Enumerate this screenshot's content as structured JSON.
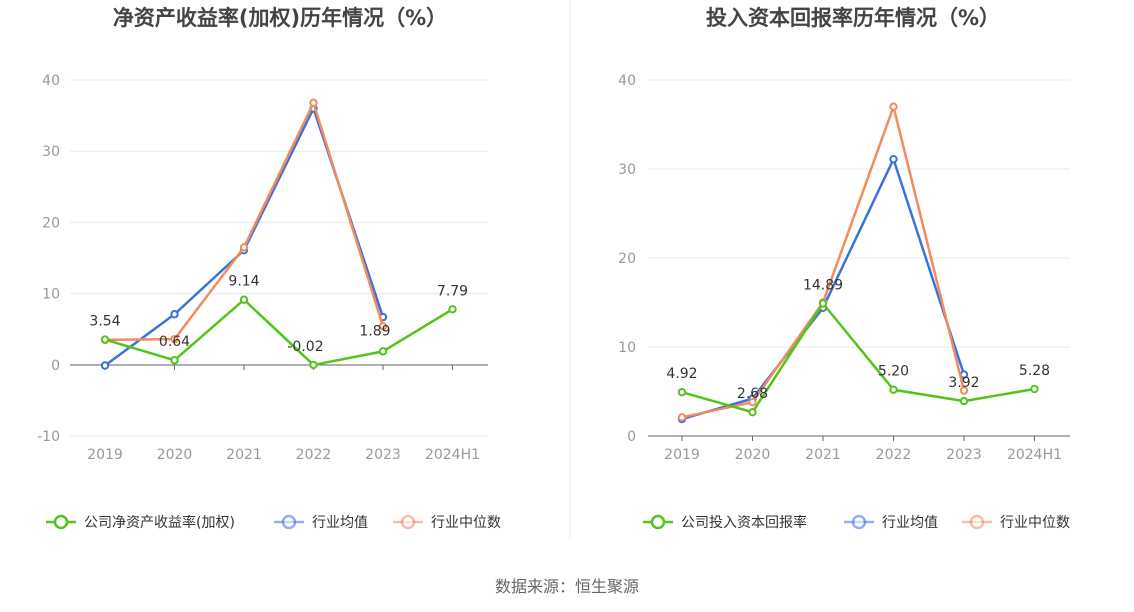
{
  "source_text": "数据来源：恒生聚源",
  "chart_data": [
    {
      "type": "line",
      "title": "净资产收益率(加权)历年情况（%）",
      "categories": [
        "2019",
        "2020",
        "2021",
        "2022",
        "2023",
        "2024H1"
      ],
      "ylim": [
        -10,
        40
      ],
      "yticks": [
        "-10",
        "0",
        "10",
        "20",
        "30",
        "40"
      ],
      "grid": true,
      "legend_position": "bottom",
      "series": [
        {
          "name": "公司净资产收益率(加权)",
          "color": "#52c41a",
          "values": [
            3.54,
            0.64,
            9.14,
            -0.02,
            1.89,
            7.79
          ],
          "labels": [
            "3.54",
            "0.64",
            "9.14",
            "-0.02",
            "1.89",
            "7.79"
          ]
        },
        {
          "name": "行业均值",
          "color": "#3b73dd",
          "values": [
            -0.1,
            7.1,
            16.1,
            36.0,
            6.7,
            null
          ]
        },
        {
          "name": "行业中位数",
          "color": "#f28b5e",
          "values": [
            3.5,
            3.6,
            16.5,
            36.8,
            5.4,
            null
          ]
        }
      ]
    },
    {
      "type": "line",
      "title": "投入资本回报率历年情况（%）",
      "categories": [
        "2019",
        "2020",
        "2021",
        "2022",
        "2023",
        "2024H1"
      ],
      "ylim": [
        0,
        40
      ],
      "yticks": [
        "0",
        "10",
        "20",
        "30",
        "40"
      ],
      "grid": true,
      "legend_position": "bottom",
      "series": [
        {
          "name": "公司投入资本回报率",
          "color": "#52c41a",
          "values": [
            4.92,
            2.68,
            14.89,
            5.2,
            3.92,
            5.28
          ],
          "labels": [
            "4.92",
            "2.68",
            "14.89",
            "5.20",
            "3.92",
            "5.28"
          ]
        },
        {
          "name": "行业均值",
          "color": "#3b73dd",
          "values": [
            1.9,
            4.2,
            14.4,
            31.1,
            6.9,
            null
          ]
        },
        {
          "name": "行业中位数",
          "color": "#f28b5e",
          "values": [
            2.1,
            3.8,
            15.0,
            37.0,
            5.1,
            null
          ]
        }
      ]
    }
  ]
}
